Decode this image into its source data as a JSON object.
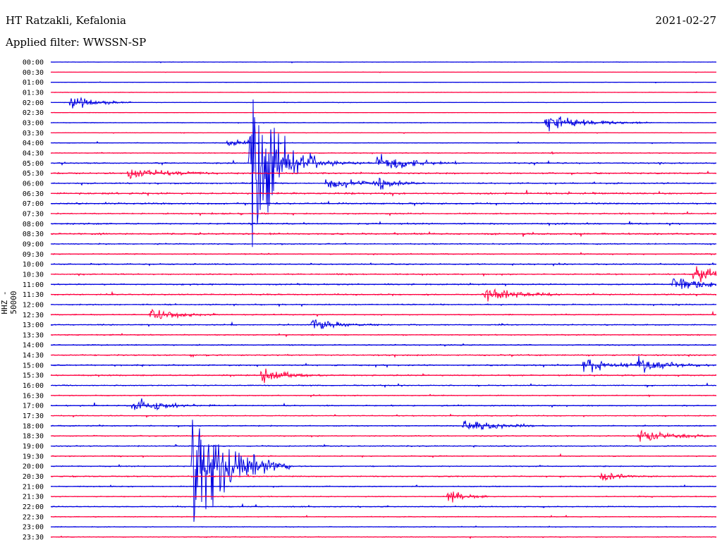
{
  "header": {
    "station": "HT Ratzakli, Kefalonia",
    "date": "2021-02-27",
    "filter": "Applied filter: WWSSN-SP",
    "channel": "HHZ - 50000"
  },
  "colors": {
    "even": "#0000e0",
    "odd": "#ff0040",
    "background": "#ffffff"
  },
  "chart_data": {
    "type": "line",
    "title": "HT Ratzakli, Kefalonia",
    "subtitle": "Applied filter: WWSSN-SP",
    "ylabel": "HHZ - 50000",
    "categories": [
      "00:00",
      "00:30",
      "01:00",
      "01:30",
      "02:00",
      "02:30",
      "03:00",
      "03:30",
      "04:00",
      "04:30",
      "05:00",
      "05:30",
      "06:00",
      "06:30",
      "07:00",
      "07:30",
      "08:00",
      "08:30",
      "09:00",
      "09:30",
      "10:00",
      "10:30",
      "11:00",
      "11:30",
      "12:00",
      "12:30",
      "13:00",
      "13:30",
      "14:00",
      "14:30",
      "15:00",
      "15:30",
      "16:00",
      "16:30",
      "17:00",
      "17:30",
      "18:00",
      "18:30",
      "19:00",
      "19:30",
      "20:00",
      "20:30",
      "21:00",
      "21:30",
      "22:00",
      "22:30",
      "23:00",
      "23:30"
    ],
    "trace_window_minutes": 30,
    "noise_level": [
      0.3,
      0.3,
      0.4,
      0.4,
      0.5,
      0.4,
      0.5,
      0.5,
      0.6,
      0.8,
      1.2,
      1.3,
      1.3,
      1.5,
      1.4,
      1.2,
      1.3,
      1.5,
      1.1,
      1.0,
      1.1,
      1.2,
      1.3,
      1.2,
      1.1,
      1.0,
      1.1,
      1.0,
      1.1,
      1.2,
      1.2,
      1.2,
      1.0,
      0.9,
      1.0,
      0.9,
      1.0,
      1.0,
      1.0,
      0.9,
      1.0,
      1.0,
      0.9,
      0.9,
      0.9,
      0.8,
      0.8,
      0.7
    ],
    "events": [
      {
        "trace": "02:00",
        "minute": 0.9,
        "amp": 14,
        "dur": 1.0
      },
      {
        "trace": "03:00",
        "minute": 22.3,
        "amp": 18,
        "dur": 1.6
      },
      {
        "trace": "04:00",
        "minute": 8.0,
        "amp": 10,
        "dur": 0.6
      },
      {
        "trace": "05:00",
        "minute": 9.0,
        "amp": 200,
        "dur": 1.0
      },
      {
        "trace": "05:00",
        "minute": 14.7,
        "amp": 20,
        "dur": 1.2
      },
      {
        "trace": "05:00",
        "minute": 11.5,
        "amp": 10,
        "dur": 1.0
      },
      {
        "trace": "05:30",
        "minute": 3.5,
        "amp": 12,
        "dur": 1.5
      },
      {
        "trace": "06:00",
        "minute": 12.4,
        "amp": 12,
        "dur": 1.5
      },
      {
        "trace": "06:00",
        "minute": 14.8,
        "amp": 14,
        "dur": 0.5
      },
      {
        "trace": "10:30",
        "minute": 29.0,
        "amp": 16,
        "dur": 2.0
      },
      {
        "trace": "11:00",
        "minute": 28.0,
        "amp": 14,
        "dur": 1.5
      },
      {
        "trace": "11:30",
        "minute": 19.5,
        "amp": 16,
        "dur": 1.2
      },
      {
        "trace": "12:30",
        "minute": 4.5,
        "amp": 14,
        "dur": 1.0
      },
      {
        "trace": "13:00",
        "minute": 11.8,
        "amp": 14,
        "dur": 1.0
      },
      {
        "trace": "15:00",
        "minute": 24.0,
        "amp": 14,
        "dur": 1.2
      },
      {
        "trace": "15:00",
        "minute": 26.5,
        "amp": 14,
        "dur": 1.2
      },
      {
        "trace": "15:30",
        "minute": 9.5,
        "amp": 14,
        "dur": 1.0
      },
      {
        "trace": "17:00",
        "minute": 3.7,
        "amp": 14,
        "dur": 1.3
      },
      {
        "trace": "18:00",
        "minute": 18.6,
        "amp": 12,
        "dur": 1.3
      },
      {
        "trace": "18:30",
        "minute": 26.5,
        "amp": 12,
        "dur": 1.3
      },
      {
        "trace": "20:00",
        "minute": 6.4,
        "amp": 130,
        "dur": 1.5
      },
      {
        "trace": "20:30",
        "minute": 24.8,
        "amp": 10,
        "dur": 0.8
      },
      {
        "trace": "21:30",
        "minute": 17.9,
        "amp": 16,
        "dur": 0.6
      }
    ]
  }
}
